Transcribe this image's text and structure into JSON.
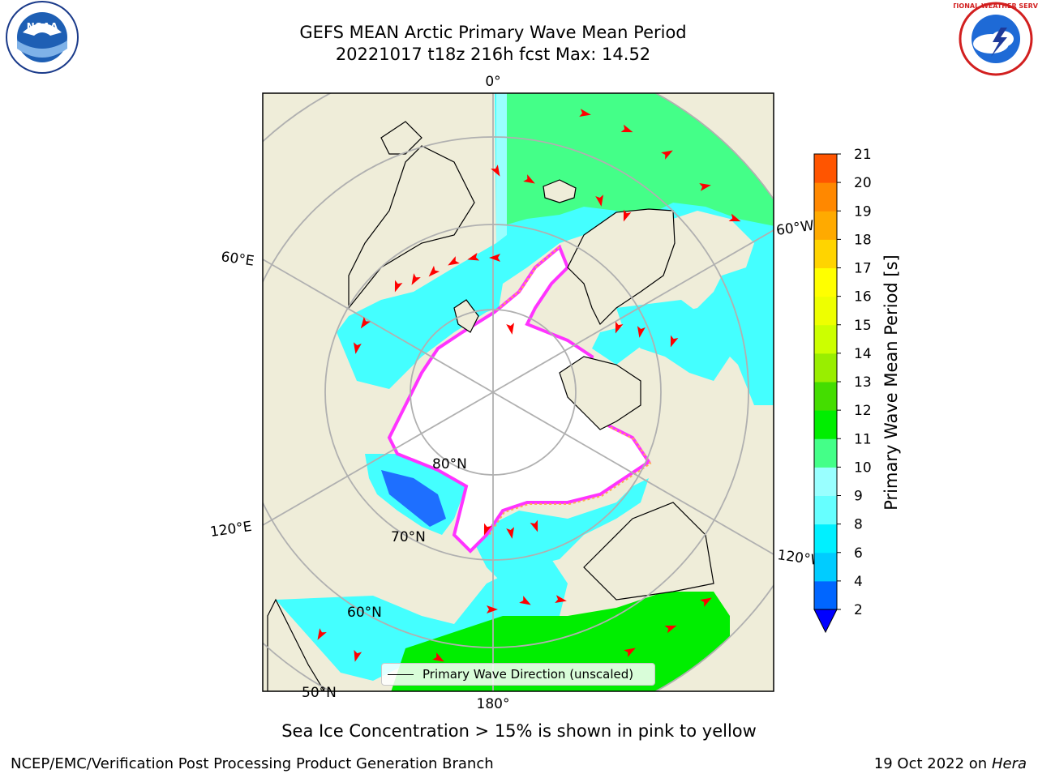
{
  "title": {
    "line1": "GEFS MEAN Arctic Primary Wave Mean Period",
    "line2": "20221017 t18z 216h fcst   Max: 14.52"
  },
  "map": {
    "projection": "north-polar-stereographic",
    "meridian_labels": [
      "0°",
      "60°E",
      "120°E",
      "180°",
      "120°W",
      "60°W"
    ],
    "parallel_labels": [
      "80°N",
      "70°N",
      "60°N",
      "50°N"
    ],
    "colors": {
      "land": "#efedd9",
      "ice_free_open_sea": "#ffffff",
      "ice_edge": [
        "#ff33ff",
        "#ffaa55",
        "#ffd966"
      ],
      "grid": "#b0b0b0",
      "arrow": "#ff0000"
    }
  },
  "legend": {
    "label": "Primary Wave Direction (unscaled)"
  },
  "colorbar": {
    "label": "Primary Wave Mean Period [s]",
    "ticks": [
      "2",
      "4",
      "6",
      "8",
      "9",
      "10",
      "11",
      "12",
      "13",
      "14",
      "15",
      "16",
      "17",
      "18",
      "19",
      "20",
      "21"
    ],
    "colors": [
      "#0066ff",
      "#00ccff",
      "#00f0ff",
      "#66ffff",
      "#99ffff",
      "#44ff88",
      "#00ee00",
      "#44dd00",
      "#99ee00",
      "#ccff00",
      "#eeff00",
      "#ffff00",
      "#ffd400",
      "#ffaa00",
      "#ff8800",
      "#ff5500",
      "#ff2200",
      "#ff0000"
    ],
    "under_color": "#0000ff"
  },
  "caption": "Sea Ice Concentration > 15% is shown in pink to yellow",
  "footer": {
    "left": "NCEP/EMC/Verification Post Processing Product Generation Branch",
    "date": "19 Oct 2022 on ",
    "machine": "Hera"
  },
  "logos": {
    "noaa": "NOAA",
    "nws": "NATIONAL WEATHER SERVICE"
  }
}
